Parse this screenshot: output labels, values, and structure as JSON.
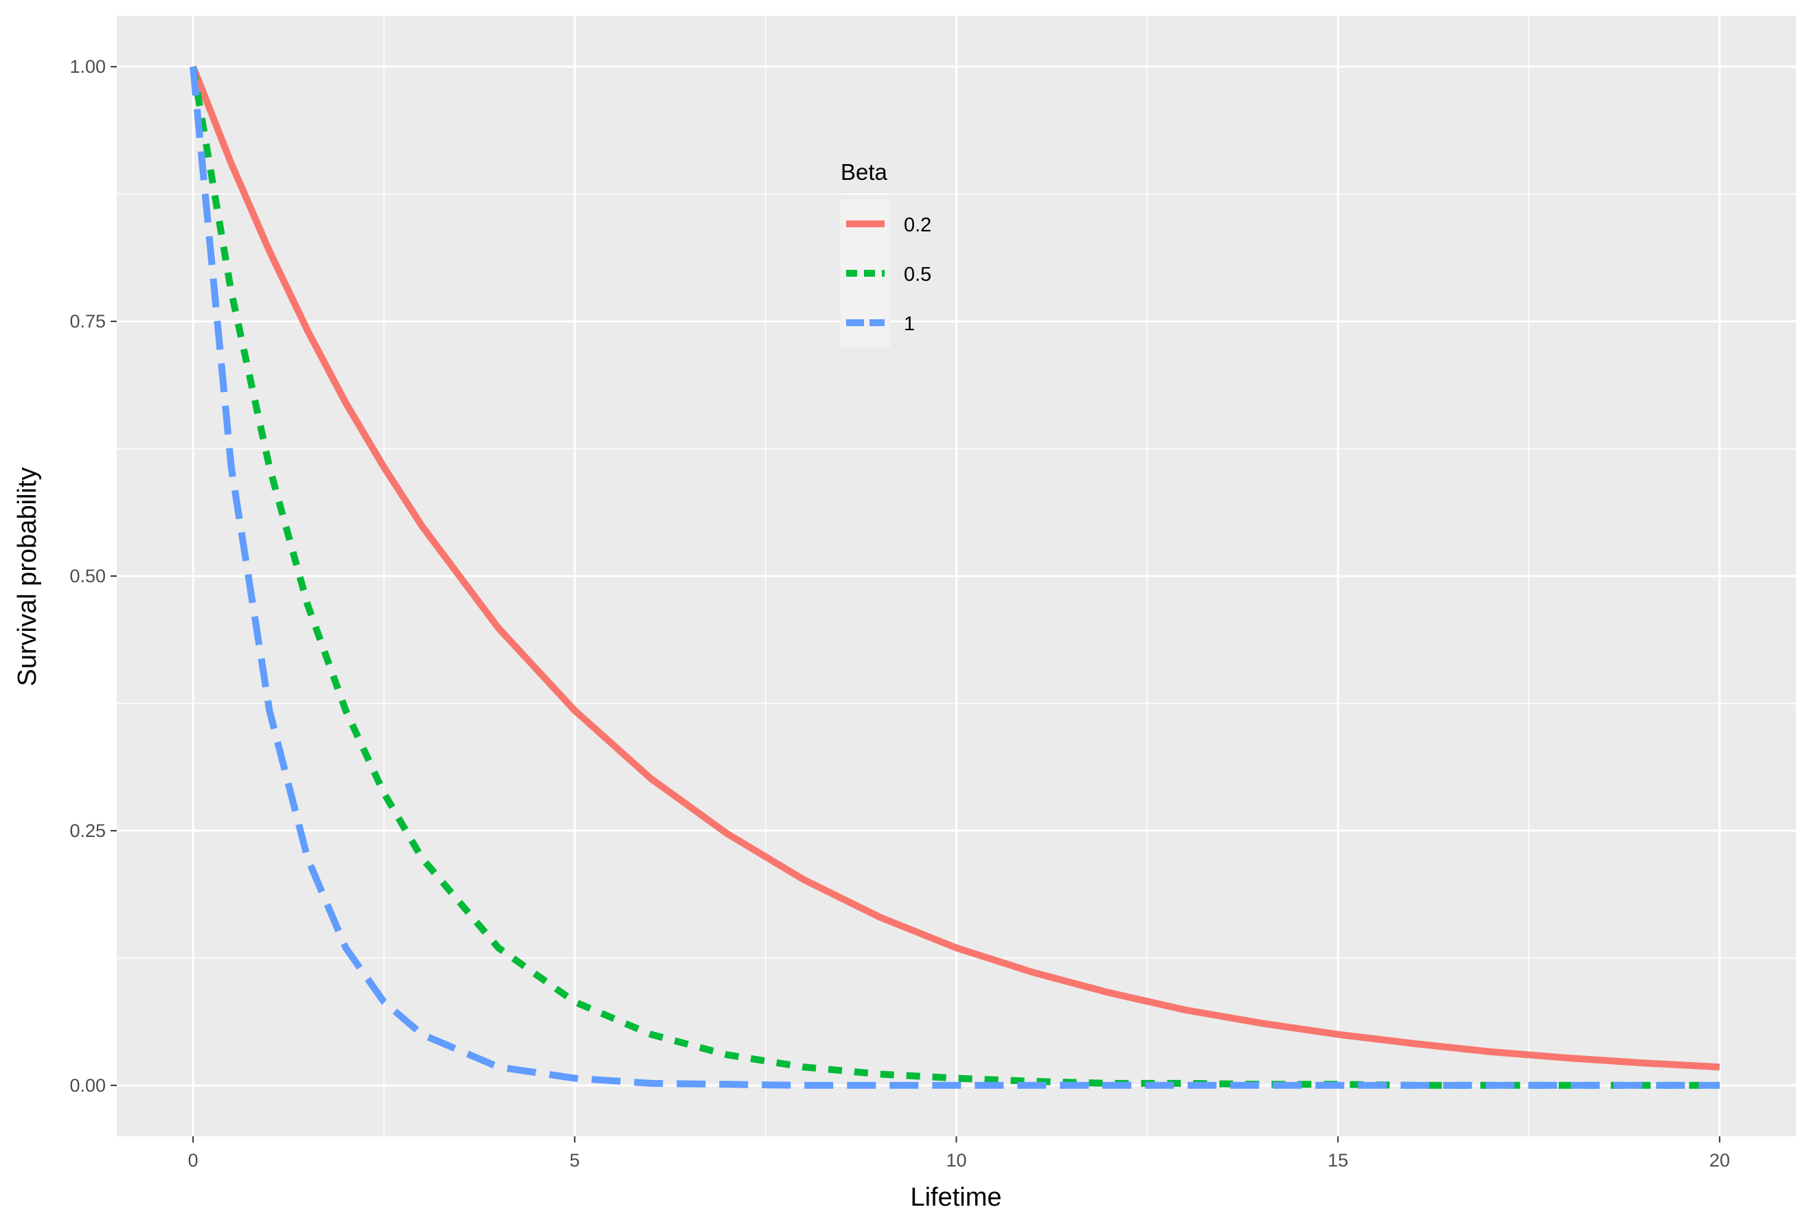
{
  "chart_data": {
    "type": "line",
    "xlabel": "Lifetime",
    "ylabel": "Survival probability",
    "xlim": [
      -1,
      21
    ],
    "ylim": [
      -0.05,
      1.05
    ],
    "x_ticks": [
      0,
      5,
      10,
      15,
      20
    ],
    "x_tick_labels": [
      "0",
      "5",
      "10",
      "15",
      "20"
    ],
    "y_ticks": [
      0,
      0.25,
      0.5,
      0.75,
      1
    ],
    "y_tick_labels": [
      "0.00",
      "0.25",
      "0.50",
      "0.75",
      "1.00"
    ],
    "grid": true,
    "background": "#ebebeb",
    "legend": {
      "title": "Beta",
      "position": "top-center, inside plot",
      "entries": [
        "0.2",
        "0.5",
        "1"
      ]
    },
    "x": [
      0,
      0.5,
      1,
      1.5,
      2,
      2.5,
      3,
      4,
      5,
      6,
      7,
      8,
      9,
      10,
      11,
      12,
      13,
      14,
      15,
      16,
      17,
      18,
      19,
      20
    ],
    "series": [
      {
        "name": "0.2",
        "color": "#f8766d",
        "line": "solid",
        "values": [
          1.0,
          0.905,
          0.819,
          0.741,
          0.67,
          0.607,
          0.549,
          0.449,
          0.368,
          0.301,
          0.247,
          0.202,
          0.165,
          0.135,
          0.111,
          0.091,
          0.074,
          0.061,
          0.05,
          0.041,
          0.033,
          0.027,
          0.022,
          0.018
        ]
      },
      {
        "name": "0.5",
        "color": "#00ba38",
        "line": "short-dash",
        "values": [
          1.0,
          0.779,
          0.607,
          0.472,
          0.368,
          0.287,
          0.223,
          0.135,
          0.082,
          0.05,
          0.03,
          0.018,
          0.011,
          0.007,
          0.004,
          0.002,
          0.002,
          0.001,
          0.001,
          0.0,
          0.0,
          0.0,
          0.0,
          0.0
        ]
      },
      {
        "name": "1",
        "color": "#619cff",
        "line": "long-dash",
        "values": [
          1.0,
          0.607,
          0.368,
          0.223,
          0.135,
          0.082,
          0.05,
          0.018,
          0.007,
          0.002,
          0.001,
          0.0,
          0.0,
          0.0,
          0.0,
          0.0,
          0.0,
          0.0,
          0.0,
          0.0,
          0.0,
          0.0,
          0.0,
          0.0
        ]
      }
    ]
  }
}
